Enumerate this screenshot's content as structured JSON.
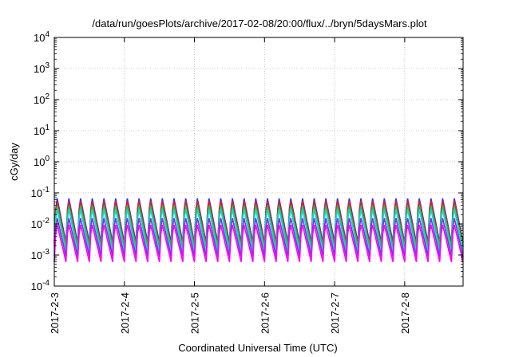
{
  "chart_data": {
    "type": "line",
    "title": "/data/run/goesPlots/archive/2017-02-08/20:00/flux/../bryn/5daysMars.plot",
    "xlabel": "Coordinated Universal Time (UTC)",
    "ylabel": "cGy/day",
    "y_scale": "log",
    "ylim": [
      0.0001,
      10000
    ],
    "y_ticks": [
      {
        "base": "10",
        "exp": "-4"
      },
      {
        "base": "10",
        "exp": "-3"
      },
      {
        "base": "10",
        "exp": "-2"
      },
      {
        "base": "10",
        "exp": "-1"
      },
      {
        "base": "10",
        "exp": "0"
      },
      {
        "base": "10",
        "exp": "1"
      },
      {
        "base": "10",
        "exp": "2"
      },
      {
        "base": "10",
        "exp": "3"
      },
      {
        "base": "10",
        "exp": "4"
      }
    ],
    "xlim": [
      "2017-02-03",
      "2017-02-08 20:00"
    ],
    "x_ticks": [
      "2017-2-3",
      "2017-2-4",
      "2017-2-5",
      "2017-2-6",
      "2017-2-7",
      "2017-2-8"
    ],
    "grid": true,
    "legend": "none",
    "oscillation_period_hours": 4,
    "series": [
      {
        "color": "#3333ff",
        "peak": 0.09,
        "trough": 0.0025
      },
      {
        "color": "#e02020",
        "peak": 0.075,
        "trough": 0.002
      },
      {
        "color": "#22cc22",
        "peak": 0.05,
        "trough": 0.0018
      },
      {
        "color": "#00dddd",
        "peak": 0.04,
        "trough": 0.0012
      },
      {
        "color": "#8a2be2",
        "peak": 0.02,
        "trough": 0.0009
      },
      {
        "color": "#ff00ff",
        "peak": 0.012,
        "trough": 0.0006
      }
    ]
  }
}
